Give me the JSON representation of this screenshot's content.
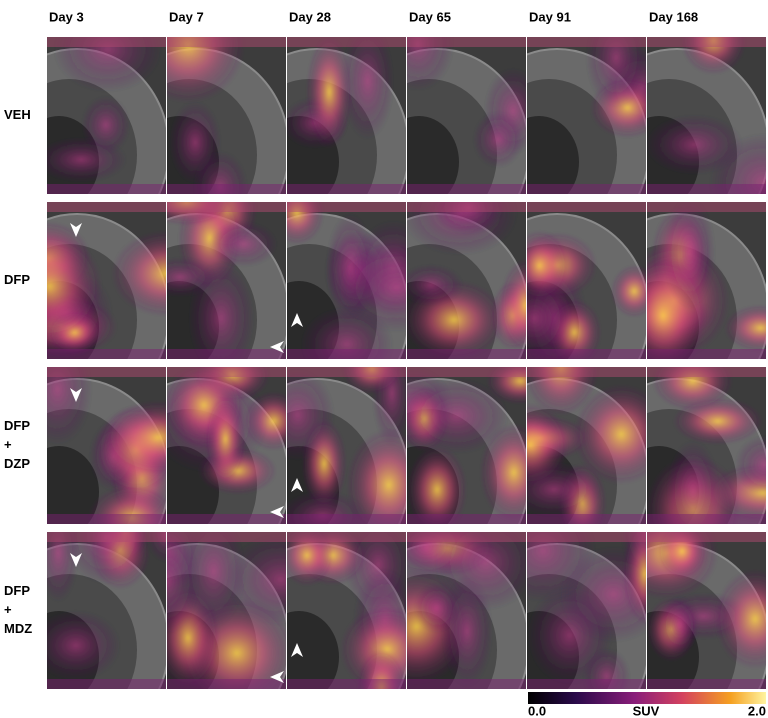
{
  "columns": [
    "Day 3",
    "Day 7",
    "Day 28",
    "Day 65",
    "Day 91",
    "Day 168"
  ],
  "rows": [
    [
      "VEH"
    ],
    [
      "DFP"
    ],
    [
      "DFP",
      "+",
      "DZP"
    ],
    [
      "DFP",
      "+",
      "MDZ"
    ]
  ],
  "colorbar": {
    "min": "0.0",
    "label": "SUV",
    "max": "2.0"
  }
}
